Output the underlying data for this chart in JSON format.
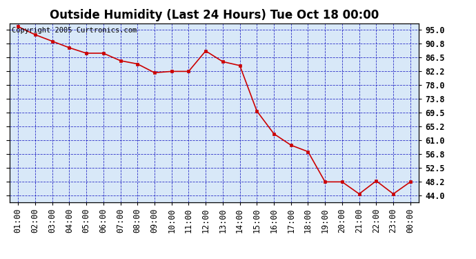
{
  "title": "Outside Humidity (Last 24 Hours) Tue Oct 18 00:00",
  "copyright": "Copyright 2005 Curtronics.com",
  "x_labels": [
    "01:00",
    "02:00",
    "03:00",
    "04:00",
    "05:00",
    "06:00",
    "07:00",
    "08:00",
    "09:00",
    "10:00",
    "11:00",
    "12:00",
    "13:00",
    "14:00",
    "15:00",
    "16:00",
    "17:00",
    "18:00",
    "19:00",
    "20:00",
    "21:00",
    "22:00",
    "23:00",
    "00:00"
  ],
  "y_values": [
    96.0,
    93.5,
    91.5,
    89.5,
    87.8,
    87.8,
    85.5,
    84.5,
    81.8,
    82.2,
    82.2,
    88.5,
    85.2,
    84.0,
    70.0,
    63.0,
    59.5,
    57.5,
    48.2,
    48.2,
    44.5,
    48.5,
    44.5,
    48.2
  ],
  "ylim_min": 42.0,
  "ylim_max": 97.0,
  "yticks": [
    44.0,
    48.2,
    52.5,
    56.8,
    61.0,
    65.2,
    69.5,
    73.8,
    78.0,
    82.2,
    86.5,
    90.8,
    95.0
  ],
  "line_color": "#cc0000",
  "marker_color": "#cc0000",
  "bg_color": "#d8e8f8",
  "grid_color": "#0000bb",
  "title_fontsize": 12,
  "tick_fontsize": 8.5,
  "copyright_fontsize": 7.5
}
